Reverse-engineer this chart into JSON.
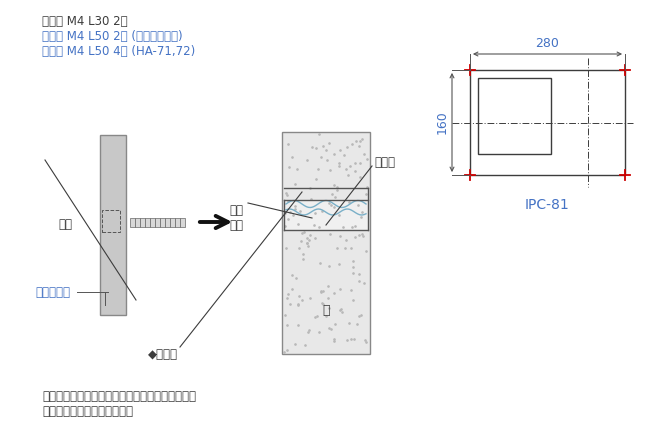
{
  "bg_color": "#ffffff",
  "text_color_dark": "#3c3c3c",
  "text_color_blue": "#4472c4",
  "text_color_red": "#cc0000",
  "line1": "ボルト M4 L30 2本",
  "line2": "ボルト M4 L50 2本 (ブロンズ鑄物)",
  "line3": "ボルト M4 L50 4本 (HA-71,72)",
  "label_hyosatsu": "表札",
  "label_bolt_hole": "ボルト用穴",
  "label_assetsu": "圧着\n固定",
  "label_toritsuke": "取付穴",
  "label_kabe": "壁",
  "label_setchaku": "◆接着劑",
  "label_ipc": "IPC-81",
  "dim_width": "280",
  "dim_height": "160",
  "footer_line1": "裏側にボルト用の穴が開いていますので付属のボ",
  "footer_line2": "ルトを回し込み固定します。"
}
